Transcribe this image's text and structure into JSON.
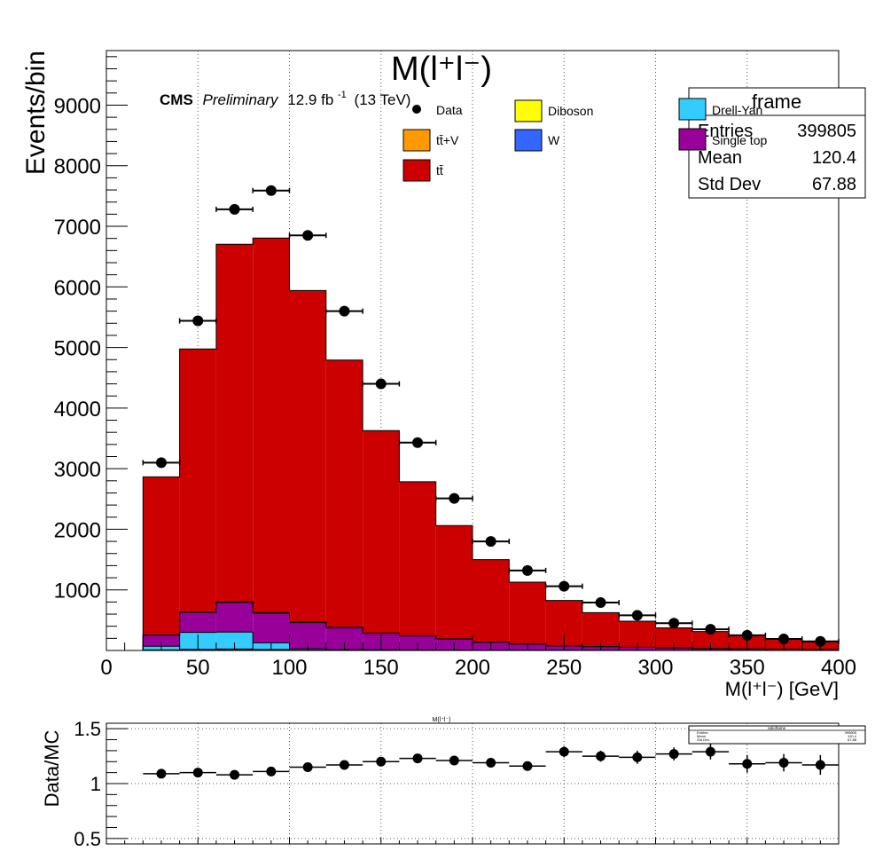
{
  "chart_data": [
    {
      "type": "bar",
      "subtype": "stacked-histogram",
      "title": "M(l⁺l⁻)",
      "xlabel": "M(l⁺l⁻) [GeV]",
      "ylabel": "Events/bin",
      "xlim": [
        0,
        400
      ],
      "ylim": [
        0,
        9900
      ],
      "grid": "vertical dotted",
      "x_ticks": [
        0,
        50,
        100,
        150,
        200,
        250,
        300,
        350,
        400
      ],
      "y_ticks": [
        1000,
        2000,
        3000,
        4000,
        5000,
        6000,
        7000,
        8000,
        9000
      ],
      "bin_edges": [
        20,
        40,
        60,
        80,
        100,
        120,
        140,
        160,
        180,
        200,
        220,
        240,
        260,
        280,
        300,
        320,
        340,
        360,
        380,
        400
      ],
      "series": [
        {
          "name": "W",
          "color": "#3366ff",
          "values": [
            5,
            10,
            15,
            10,
            5,
            0,
            0,
            0,
            0,
            0,
            0,
            0,
            0,
            0,
            0,
            0,
            0,
            0,
            0
          ]
        },
        {
          "name": "Diboson",
          "color": "#ffff00",
          "values": [
            5,
            8,
            8,
            6,
            5,
            4,
            4,
            3,
            3,
            2,
            2,
            1,
            1,
            1,
            1,
            1,
            0,
            0,
            0
          ]
        },
        {
          "name": "Drell-Yan",
          "color": "#33ccff",
          "values": [
            60,
            280,
            280,
            110,
            20,
            10,
            8,
            6,
            5,
            4,
            3,
            2,
            2,
            1,
            1,
            1,
            1,
            1,
            1
          ]
        },
        {
          "name": "Single top",
          "color": "#990099",
          "values": [
            180,
            330,
            490,
            490,
            430,
            360,
            270,
            230,
            180,
            130,
            100,
            70,
            60,
            50,
            40,
            30,
            25,
            20,
            15
          ]
        },
        {
          "name": "tt̄+V",
          "color": "#ff9900",
          "values": [
            5,
            8,
            10,
            10,
            10,
            8,
            6,
            5,
            4,
            3,
            3,
            2,
            2,
            2,
            1,
            1,
            1,
            1,
            1
          ]
        },
        {
          "name": "tt̄",
          "color": "#cc0000",
          "values": [
            2610,
            4340,
            5900,
            6180,
            5470,
            4410,
            3340,
            2540,
            1870,
            1360,
            1020,
            750,
            560,
            430,
            330,
            280,
            220,
            170,
            130
          ]
        }
      ],
      "data_points": {
        "name": "Data",
        "x": [
          30,
          50,
          70,
          90,
          110,
          130,
          150,
          170,
          190,
          210,
          230,
          250,
          270,
          290,
          310,
          330,
          350,
          370,
          390
        ],
        "y": [
          3100,
          5440,
          7280,
          7590,
          6850,
          5600,
          4400,
          3430,
          2510,
          1800,
          1320,
          1060,
          790,
          580,
          450,
          350,
          250,
          190,
          150
        ],
        "x_err": 10
      },
      "annotation": {
        "experiment": "CMS",
        "status": "Preliminary",
        "lumi_value": "12.9 fb",
        "lumi_exp": "-1",
        "energy": "(13 TeV)"
      },
      "legend": {
        "placement": "top",
        "entries": [
          {
            "label": "Data",
            "style": "marker"
          },
          {
            "label": "Diboson",
            "color": "#ffff00"
          },
          {
            "label": "Drell-Yan",
            "color": "#33ccff"
          },
          {
            "label": "tt̄+V",
            "color": "#ff9900"
          },
          {
            "label": "W",
            "color": "#3366ff"
          },
          {
            "label": "Single top",
            "color": "#990099"
          },
          {
            "label": "tt̄",
            "color": "#cc0000"
          }
        ]
      },
      "stats_box": {
        "title": "frame",
        "rows": [
          {
            "label": "Entries",
            "value": "399805"
          },
          {
            "label": "Mean",
            "value": "120.4"
          },
          {
            "label": "Std Dev",
            "value": "67.88"
          }
        ]
      }
    },
    {
      "type": "scatter",
      "title": "M(l⁺l⁻)",
      "ylabel": "Data/MC",
      "xlim": [
        0,
        400
      ],
      "ylim": [
        0.45,
        1.55
      ],
      "y_ticks": [
        0.5,
        1,
        1.5
      ],
      "y_tick_labels": [
        "0.5",
        "1",
        "1.5"
      ],
      "x": [
        30,
        50,
        70,
        90,
        110,
        130,
        150,
        170,
        190,
        210,
        230,
        250,
        270,
        290,
        310,
        330,
        350,
        370,
        390
      ],
      "y": [
        1.09,
        1.1,
        1.08,
        1.11,
        1.15,
        1.17,
        1.2,
        1.23,
        1.21,
        1.19,
        1.16,
        1.29,
        1.25,
        1.24,
        1.27,
        1.29,
        1.18,
        1.19,
        1.17
      ],
      "y_err": [
        0.02,
        0.02,
        0.02,
        0.02,
        0.02,
        0.02,
        0.02,
        0.03,
        0.03,
        0.03,
        0.04,
        0.05,
        0.05,
        0.06,
        0.06,
        0.07,
        0.08,
        0.08,
        0.09
      ],
      "x_err": 10,
      "stats_box": {
        "title": "ratioframe",
        "rows": [
          {
            "label": "Entries",
            "value": "399805"
          },
          {
            "label": "Mean",
            "value": "120.4"
          },
          {
            "label": "Std Dev",
            "value": "67.88"
          }
        ]
      }
    }
  ]
}
